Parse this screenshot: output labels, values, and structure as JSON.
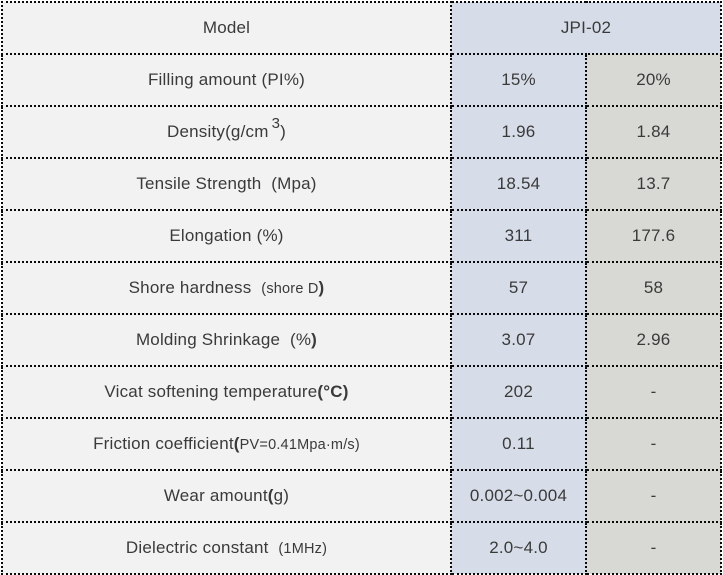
{
  "colors": {
    "col1_bg": "#f2f2f2",
    "col2_bg": "#d7dde8",
    "col3_bg": "#d8d8d4",
    "border": "#0a0a0a",
    "text": "#3a3a3a"
  },
  "table": {
    "header": {
      "label": "Model",
      "value": "JPI-02"
    },
    "rows": [
      {
        "label": [
          {
            "t": "Filling amount (PI%)"
          }
        ],
        "values": [
          "15%",
          "20%"
        ]
      },
      {
        "label": [
          {
            "t": "Density(g/cm"
          },
          {
            "t": "3",
            "s": "sup"
          },
          {
            "t": ")"
          }
        ],
        "values": [
          "1.96",
          "1.84"
        ]
      },
      {
        "label": [
          {
            "t": "Tensile Strength  (Mpa)"
          }
        ],
        "values": [
          "18.54",
          "13.7"
        ]
      },
      {
        "label": [
          {
            "t": "Elongation (%)"
          }
        ],
        "values": [
          "311",
          "177.6"
        ]
      },
      {
        "label": [
          {
            "t": "Shore hardness  "
          },
          {
            "t": "(shore D",
            "s": "small"
          },
          {
            "t": ")",
            "s": "bold"
          }
        ],
        "values": [
          "57",
          "58"
        ]
      },
      {
        "label": [
          {
            "t": "Molding Shrinkage  (%"
          },
          {
            "t": ")",
            "s": "bold"
          }
        ],
        "values": [
          "3.07",
          "2.96"
        ]
      },
      {
        "label": [
          {
            "t": "Vicat softening temperature"
          },
          {
            "t": "(°C)",
            "s": "bold"
          }
        ],
        "values": [
          "202",
          "-"
        ]
      },
      {
        "label": [
          {
            "t": "Friction coefficient"
          },
          {
            "t": "(",
            "s": "bold"
          },
          {
            "t": "PV=0.41Mpa·m/s)",
            "s": "small"
          }
        ],
        "values": [
          "0.11",
          "-"
        ]
      },
      {
        "label": [
          {
            "t": "Wear amount"
          },
          {
            "t": "(",
            "s": "bold"
          },
          {
            "t": "g)"
          }
        ],
        "values": [
          "0.002~0.004",
          "-"
        ]
      },
      {
        "label": [
          {
            "t": "Dielectric constant  "
          },
          {
            "t": "(1MHz)",
            "s": "small"
          }
        ],
        "values": [
          "2.0~4.0",
          "-"
        ]
      }
    ]
  }
}
